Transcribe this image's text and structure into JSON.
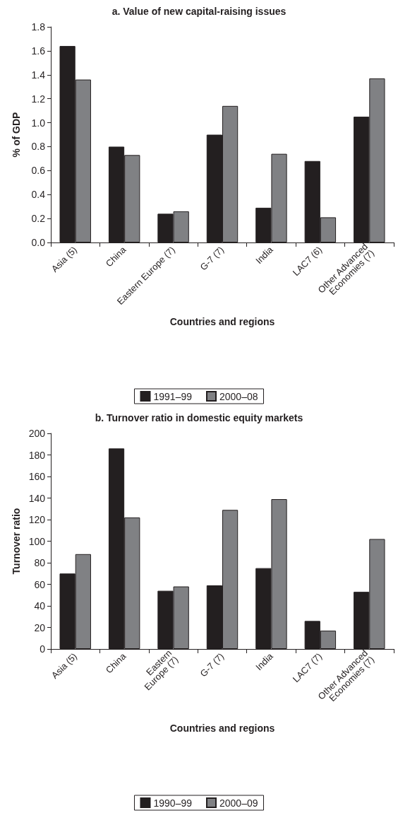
{
  "chart_data": [
    {
      "type": "bar",
      "title": "a. Value of new capital-raising issues",
      "xlabel": "Countries and regions",
      "ylabel": "% of GDP",
      "categories": [
        "Asia (5)",
        "China",
        "Eastern Europe (7)",
        "G-7 (7)",
        "India",
        "LAC7 (6)",
        "Other Advanced\nEconomies (7)"
      ],
      "series": [
        {
          "name": "1991–99",
          "color": "#231f20",
          "values": [
            1.64,
            0.8,
            0.24,
            0.9,
            0.29,
            0.68,
            1.05
          ]
        },
        {
          "name": "2000–08",
          "color": "#808184",
          "values": [
            1.36,
            0.73,
            0.26,
            1.14,
            0.74,
            0.21,
            1.37
          ]
        }
      ],
      "ylim": [
        0,
        1.8
      ],
      "yticks": [
        {
          "value": 0,
          "label": "0.0"
        },
        0.2,
        0.4,
        0.6,
        0.8,
        {
          "value": 1,
          "label": "1.0"
        },
        1.2,
        1.4,
        1.6,
        1.8
      ],
      "grid": false,
      "legend": "bottom"
    },
    {
      "type": "bar",
      "title": "b. Turnover ratio in domestic equity markets",
      "xlabel": "Countries and regions",
      "ylabel": "Turnover ratio",
      "categories": [
        "Asia (5)",
        "China",
        "Eastern\nEurope (7)",
        "G-7 (7)",
        "India",
        "LAC7 (7)",
        "Other Advanced\nEconomies (7)"
      ],
      "series": [
        {
          "name": "1990–99",
          "color": "#231f20",
          "values": [
            70,
            186,
            54,
            59,
            75,
            26,
            53
          ]
        },
        {
          "name": "2000–09",
          "color": "#808184",
          "values": [
            88,
            122,
            58,
            129,
            139,
            17,
            102
          ]
        }
      ],
      "ylim": [
        0,
        200
      ],
      "yticks": [
        0,
        20,
        40,
        60,
        80,
        100,
        120,
        140,
        160,
        180,
        200
      ],
      "grid": false,
      "legend": "bottom"
    }
  ]
}
